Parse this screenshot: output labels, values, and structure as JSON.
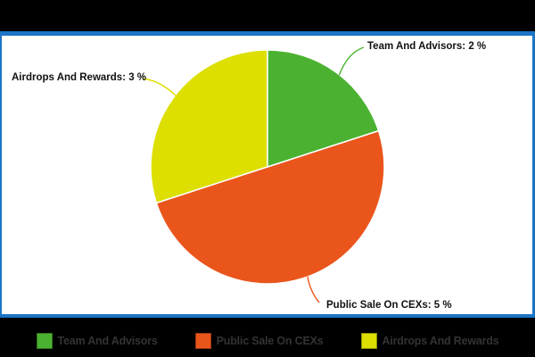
{
  "chart_data": {
    "type": "pie",
    "title": "",
    "labels": [
      "Team And Advisors",
      "Public Sale On CEXs",
      "Airdrops And Rewards"
    ],
    "values": [
      2,
      5,
      3
    ],
    "unit": "%",
    "slice_fractions_pct": [
      20,
      50,
      30
    ],
    "colors": [
      "#4BB231",
      "#EA551C",
      "#DCDF00"
    ],
    "start_angle": "12-o-clock",
    "direction": "clockwise",
    "callout_labels": [
      "Team And Advisors: 2 %",
      "Public Sale On CEXs: 5 %",
      "Airdrops And Rewards: 3 %"
    ],
    "legend_position": "bottom",
    "legend_entries": [
      "Team And Advisors",
      "Public Sale On CEXs",
      "Airdrops And Rewards"
    ]
  },
  "frame": {
    "page_background": "#000000",
    "panel_background": "#ffffff",
    "panel_border_color": "#1B74C5"
  },
  "callouts": {
    "team": "Team And Advisors: 2 %",
    "public": "Public Sale On CEXs: 5 %",
    "airdrops": "Airdrops And Rewards: 3 %"
  },
  "legend": {
    "text_color": "#333333",
    "items": [
      {
        "label": "Team And Advisors",
        "color": "#4BB231"
      },
      {
        "label": "Public Sale On CEXs",
        "color": "#EA551C"
      },
      {
        "label": "Airdrops And Rewards",
        "color": "#DCDF00"
      }
    ]
  }
}
